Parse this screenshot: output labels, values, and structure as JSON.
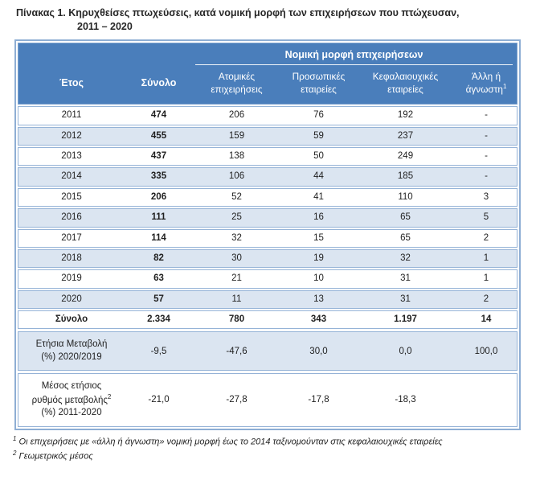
{
  "title": {
    "line1": "Πίνακας 1. Κηρυχθείσες πτωχεύσεις, κατά νομική μορφή των επιχειρήσεων που πτώχευσαν,",
    "line2": "2011 – 2020"
  },
  "table": {
    "group_header": "Νομική μορφή επιχειρήσεων",
    "col_year": "Έτος",
    "col_total": "Σύνολο",
    "col_individual": "Ατομικές επιχειρήσεις",
    "col_personal": "Προσωπικές εταιρείες",
    "col_capital": "Κεφαλαιουχικές εταιρείες",
    "col_other": "Άλλη ή άγνωστη",
    "col_other_sup": "1",
    "rows": [
      {
        "label": "2011",
        "values": [
          "474",
          "206",
          "76",
          "192",
          "-"
        ]
      },
      {
        "label": "2012",
        "values": [
          "455",
          "159",
          "59",
          "237",
          "-"
        ]
      },
      {
        "label": "2013",
        "values": [
          "437",
          "138",
          "50",
          "249",
          "-"
        ]
      },
      {
        "label": "2014",
        "values": [
          "335",
          "106",
          "44",
          "185",
          "-"
        ]
      },
      {
        "label": "2015",
        "values": [
          "206",
          "52",
          "41",
          "110",
          "3"
        ]
      },
      {
        "label": "2016",
        "values": [
          "111",
          "25",
          "16",
          "65",
          "5"
        ]
      },
      {
        "label": "2017",
        "values": [
          "114",
          "32",
          "15",
          "65",
          "2"
        ]
      },
      {
        "label": "2018",
        "values": [
          "82",
          "30",
          "19",
          "32",
          "1"
        ]
      },
      {
        "label": "2019",
        "values": [
          "63",
          "21",
          "10",
          "31",
          "1"
        ]
      },
      {
        "label": "2020",
        "values": [
          "57",
          "11",
          "13",
          "31",
          "2"
        ]
      }
    ],
    "total_row": {
      "label": "Σύνολο",
      "values": [
        "2.334",
        "780",
        "343",
        "1.197",
        "14"
      ]
    },
    "annual_change_row": {
      "label_line1": "Ετήσια Μεταβολή",
      "label_line2": "(%) 2020/2019",
      "values": [
        "-9,5",
        "-47,6",
        "30,0",
        "0,0",
        "100,0"
      ]
    },
    "avg_change_row": {
      "label_line1": "Μέσος ετήσιος",
      "label_line2": "ρυθμός μεταβολής",
      "label_sup": "2",
      "label_line3": "(%) 2011-2020",
      "values": [
        "-21,0",
        "-27,8",
        "-17,8",
        "-18,3",
        ""
      ]
    }
  },
  "footnotes": [
    {
      "sup": "1",
      "text": "Οι επιχειρήσεις με «άλλη ή άγνωστη» νομική μορφή έως το 2014 ταξινομούνταν στις κεφαλαιουχικές εταιρείες"
    },
    {
      "sup": "2",
      "text": "Γεωμετρικός μέσος"
    }
  ],
  "colors": {
    "header_bg": "#4a7ebb",
    "alt_row_bg": "#dbe5f1",
    "row_border": "#95b3d7",
    "outer_border": "#8eaed4",
    "header_text": "#ffffff",
    "body_text": "#1f1f1f"
  }
}
